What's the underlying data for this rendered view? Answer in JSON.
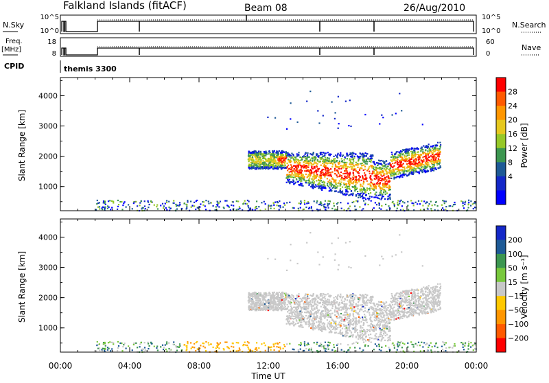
{
  "header": {
    "station": "Falkland Islands (fitACF)",
    "beam": "Beam 08",
    "date": "26/Aug/2010"
  },
  "chart_data": [
    {
      "type": "line",
      "name": "nsky-nsearch-strip",
      "left_label": "N.Sky",
      "right_label": "N.Search",
      "left_ticks": [
        "10^5",
        "10^0"
      ],
      "right_ticks": [
        "10^5",
        "10^0"
      ],
      "right_legend_style": "dotted"
    },
    {
      "type": "line",
      "name": "freq-nave-strip",
      "left_label_line1": "Freq.",
      "left_label_line2": "[MHz]",
      "right_label": "Nave",
      "left_ticks": [
        "18",
        "8"
      ],
      "right_ticks": [
        "60",
        "0"
      ],
      "right_legend_style": "dotted",
      "cpid_label": "CPID",
      "cpid_value": "themis 3300"
    },
    {
      "type": "heatmap",
      "name": "power-panel",
      "ylabel": "Slant Range [km]",
      "yticks": [
        1000,
        2000,
        3000,
        4000
      ],
      "ylim": [
        200,
        4600
      ],
      "colorbar_label": "Power [dB]",
      "colorbar_ticks": [
        "28",
        "24",
        "20",
        "16",
        "12",
        "8",
        "4"
      ],
      "colorbar_colors": [
        "#ff0000",
        "#ff5a00",
        "#ff9600",
        "#e6c81e",
        "#96c828",
        "#3c9650",
        "#1e5a96",
        "#1428c8",
        "#0000ff"
      ]
    },
    {
      "type": "heatmap",
      "name": "velocity-panel",
      "ylabel": "Slant Range [km]",
      "yticks": [
        1000,
        2000,
        3000,
        4000
      ],
      "ylim": [
        200,
        4600
      ],
      "xlabel": "Time UT",
      "xticks": [
        "00:00",
        "04:00",
        "08:00",
        "12:00",
        "16:00",
        "20:00",
        "00:00"
      ],
      "colorbar_label": "Velocity [m s⁻¹]",
      "colorbar_ticks": [
        "200",
        "100",
        "50",
        "15",
        "−15",
        "−50",
        "−100",
        "−200"
      ],
      "colorbar_colors": [
        "#1428c8",
        "#1e5a96",
        "#3c9650",
        "#78c83c",
        "#c8c8c8",
        "#ffc800",
        "#ff9600",
        "#ff5a00",
        "#ff0000"
      ]
    }
  ]
}
